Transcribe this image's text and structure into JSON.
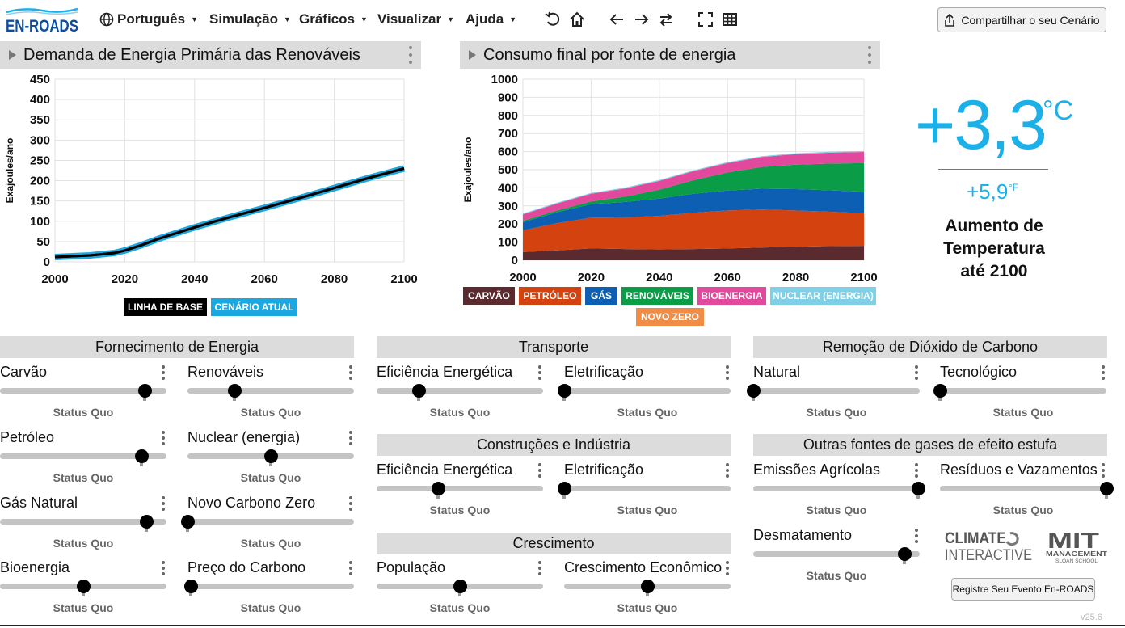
{
  "app": {
    "logo_text": "EN-ROADS",
    "menus": [
      "Português",
      "Simulação",
      "Gráficos",
      "Visualizar",
      "Ajuda"
    ],
    "share_label": "Compartilhar o seu Cenário",
    "register_label": "Registre Seu Evento En-ROADS",
    "version": "v25.6",
    "partner_logos": [
      "CLIMATE INTERACTIVE",
      "MIT MANAGEMENT SLOAN SCHOOL"
    ]
  },
  "graph_left": {
    "title": "Demanda de Energia Primária das Renováveis",
    "legend": [
      "LINHA DE BASE",
      "CENÁRIO ATUAL"
    ]
  },
  "graph_right": {
    "title": "Consumo final por fonte de energia",
    "legend": [
      "CARVÃO",
      "PETRÓLEO",
      "GÁS",
      "RENOVÁVEIS",
      "BIOENERGIA",
      "NUCLEAR (ENERGIA)",
      "NOVO ZERO"
    ]
  },
  "chart_data": [
    {
      "type": "line",
      "title": "Demanda de Energia Primária das Renováveis",
      "ylabel": "Exajoules/ano",
      "xlim": [
        2000,
        2100
      ],
      "ylim": [
        0,
        450
      ],
      "x_ticks": [
        "2000",
        "2020",
        "2040",
        "2060",
        "2080",
        "2100"
      ],
      "y_ticks": [
        "0",
        "50",
        "100",
        "150",
        "200",
        "250",
        "300",
        "350",
        "400",
        "450"
      ],
      "x": [
        2000,
        2010,
        2017,
        2020,
        2025,
        2030,
        2040,
        2050,
        2060,
        2070,
        2080,
        2090,
        2100
      ],
      "series": [
        {
          "name": "LINHA DE BASE",
          "color": "#000000",
          "values": [
            12,
            16,
            22,
            28,
            42,
            58,
            85,
            110,
            133,
            157,
            182,
            207,
            230
          ]
        },
        {
          "name": "CENÁRIO ATUAL",
          "color": "#1ba8e0",
          "values": [
            12,
            16,
            22,
            28,
            42,
            58,
            85,
            110,
            133,
            157,
            182,
            207,
            230
          ]
        }
      ],
      "grid": true
    },
    {
      "type": "area",
      "title": "Consumo final por fonte de energia",
      "ylabel": "Exajoules/ano",
      "xlim": [
        2000,
        2100
      ],
      "ylim": [
        0,
        1000
      ],
      "x_ticks": [
        "2000",
        "2020",
        "2040",
        "2060",
        "2080",
        "2100"
      ],
      "y_ticks": [
        "0",
        "100",
        "200",
        "300",
        "400",
        "500",
        "600",
        "700",
        "800",
        "900",
        "1000"
      ],
      "x": [
        2000,
        2010,
        2020,
        2030,
        2040,
        2050,
        2060,
        2070,
        2080,
        2090,
        2100
      ],
      "stacked": true,
      "series": [
        {
          "name": "CARVÃO",
          "color": "#5b2a2e",
          "values": [
            45,
            55,
            65,
            62,
            60,
            62,
            65,
            70,
            75,
            78,
            80
          ]
        },
        {
          "name": "PETRÓLEO",
          "color": "#d4420f",
          "values": [
            120,
            150,
            170,
            175,
            185,
            200,
            210,
            210,
            200,
            190,
            180
          ]
        },
        {
          "name": "GÁS",
          "color": "#0d5fb4",
          "values": [
            45,
            60,
            75,
            85,
            95,
            105,
            110,
            115,
            118,
            118,
            118
          ]
        },
        {
          "name": "RENOVÁVEIS",
          "color": "#0b9c47",
          "values": [
            8,
            10,
            15,
            30,
            50,
            75,
            100,
            120,
            135,
            148,
            158
          ]
        },
        {
          "name": "BIOENERGIA",
          "color": "#e2489c",
          "values": [
            35,
            38,
            42,
            45,
            48,
            50,
            52,
            55,
            58,
            60,
            62
          ]
        },
        {
          "name": "NUCLEAR (ENERGIA)",
          "color": "#7fcfe6",
          "values": [
            5,
            5,
            5,
            5,
            5,
            5,
            5,
            5,
            5,
            5,
            5
          ]
        },
        {
          "name": "NOVO ZERO",
          "color": "#f08c45",
          "values": [
            0,
            0,
            0,
            0,
            0,
            0,
            0,
            0,
            0,
            0,
            0
          ]
        }
      ],
      "grid": true
    }
  ],
  "temperature": {
    "celsius": "+3,3",
    "celsius_unit": "°C",
    "fahrenheit": "+5,9",
    "fahrenheit_unit": "°F",
    "label_lines": [
      "Aumento de",
      "Temperatura",
      "até 2100"
    ]
  },
  "sections": {
    "energy_supply": "Fornecimento de Energia",
    "transport": "Transporte",
    "buildings": "Construções e Indústria",
    "growth": "Crescimento",
    "cdr": "Remoção de Dióxido de Carbono",
    "other_ghg": "Outras fontes de gases de efeito estufa"
  },
  "sliders": [
    {
      "label": "Carvão",
      "status": "Status Quo",
      "level": 0.87,
      "sq": 0.87
    },
    {
      "label": "Renováveis",
      "status": "Status Quo",
      "level": 0.28,
      "sq": 0.28
    },
    {
      "label": "Petróleo",
      "status": "Status Quo",
      "level": 0.85,
      "sq": 0.85
    },
    {
      "label": "Nuclear (energia)",
      "status": "Status Quo",
      "level": 0.5,
      "sq": 0.5
    },
    {
      "label": "Gás Natural",
      "status": "Status Quo",
      "level": 0.88,
      "sq": 0.88
    },
    {
      "label": "Novo Carbono Zero",
      "status": "Status Quo",
      "level": 0.0,
      "sq": 0.0
    },
    {
      "label": "Bioenergia",
      "status": "Status Quo",
      "level": 0.5,
      "sq": 0.5
    },
    {
      "label": "Preço do Carbono",
      "status": "Status Quo",
      "level": 0.02,
      "sq": 0.02
    },
    {
      "label": "Eficiência Energética",
      "status": "Status Quo",
      "level": 0.25,
      "sq": 0.25
    },
    {
      "label": "Eletrificação",
      "status": "Status Quo",
      "level": 0.0,
      "sq": 0.0
    },
    {
      "label": "Eficiência Energética",
      "status": "Status Quo",
      "level": 0.37,
      "sq": 0.37
    },
    {
      "label": "Eletrificação",
      "status": "Status Quo",
      "level": 0.0,
      "sq": 0.0
    },
    {
      "label": "População",
      "status": "Status Quo",
      "level": 0.5,
      "sq": 0.5
    },
    {
      "label": "Crescimento Econômico",
      "status": "Status Quo",
      "level": 0.5,
      "sq": 0.5
    },
    {
      "label": "Natural",
      "status": "Status Quo",
      "level": 0.0,
      "sq": 0.0
    },
    {
      "label": "Tecnológico",
      "status": "Status Quo",
      "level": 0.0,
      "sq": 0.0
    },
    {
      "label": "Emissões Agrícolas",
      "status": "Status Quo",
      "level": 0.99,
      "sq": 0.99
    },
    {
      "label": "Resíduos e Vazamentos",
      "status": "Status Quo",
      "level": 1.0,
      "sq": 1.0
    },
    {
      "label": "Desmatamento",
      "status": "Status Quo",
      "level": 0.91,
      "sq": 0.91
    }
  ]
}
